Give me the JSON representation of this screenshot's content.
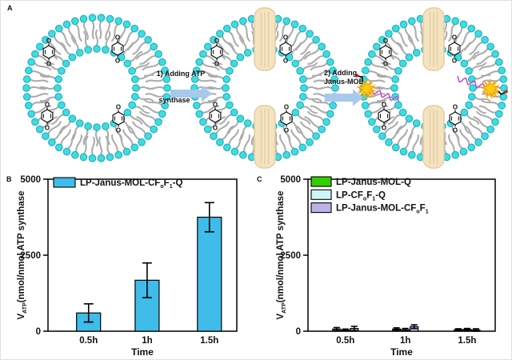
{
  "figure": {
    "panel_a_label": "A",
    "panel_b_label": "B",
    "panel_c_label": "C"
  },
  "scheme": {
    "step1_line1": "1) Adding ATP",
    "step1_line2": "synthase",
    "step2_line1": "2) Adding",
    "step2_line2": "Janus-MOL",
    "colors": {
      "lipid_head": "#3EDCE0",
      "lipid_head_stroke": "#18A9B8",
      "lipid_tail": "#ACACAC",
      "atp_synthase_fill": "#F4E3C0",
      "atp_synthase_stroke": "#E4CB9C",
      "janus_mol_gold": "#FFCD12",
      "janus_mol_orange": "#F09E06",
      "polymer_chain": "#C94FC9",
      "arrow_fill": "#A8C8EC",
      "quinone_stroke": "#111111",
      "anchor_tip_red": "#D42B1E"
    }
  },
  "chart_data": [
    {
      "type": "bar",
      "panel": "B",
      "categories": [
        "0.5h",
        "1h",
        "1.5h"
      ],
      "series": [
        {
          "name_parts": [
            {
              "t": "LP-Janus-MOL-CF"
            },
            {
              "t": "o",
              "sub": true
            },
            {
              "t": "F"
            },
            {
              "t": "1",
              "sub": true
            },
            {
              "t": "-Q"
            }
          ],
          "color": "#3FBCE9",
          "values": [
            600,
            1675,
            3750
          ],
          "errors": [
            300,
            570,
            480
          ]
        }
      ],
      "xlabel": "Time",
      "ylabel_parts": {
        "pre": "V",
        "sub": "ATP",
        "rest": "(nmol/nmol ATP synthase"
      },
      "ylim": [
        0,
        5000
      ],
      "yticks": [
        0,
        2500,
        5000
      ],
      "legend_position": "top-left",
      "grid": false
    },
    {
      "type": "bar",
      "panel": "C",
      "categories": [
        "0.5h",
        "1h",
        "1.5h"
      ],
      "series": [
        {
          "name_parts": [
            {
              "t": "LP-Janus-MOL-Q"
            }
          ],
          "color": "#33CC00",
          "values": [
            70,
            70,
            50
          ],
          "errors": [
            50,
            40,
            30
          ]
        },
        {
          "name_parts": [
            {
              "t": "LP-CF"
            },
            {
              "t": "o",
              "sub": true
            },
            {
              "t": "F"
            },
            {
              "t": "1",
              "sub": true
            },
            {
              "t": "-Q"
            }
          ],
          "color": "#CFF6F6",
          "values": [
            40,
            50,
            60
          ],
          "errors": [
            30,
            40,
            30
          ]
        },
        {
          "name_parts": [
            {
              "t": "LP-Janus-MOL-CF"
            },
            {
              "t": "o",
              "sub": true
            },
            {
              "t": "F"
            },
            {
              "t": "1",
              "sub": true
            }
          ],
          "color": "#B9B4E6",
          "values": [
            90,
            150,
            40
          ],
          "errors": [
            70,
            60,
            40
          ]
        }
      ],
      "xlabel": "Time",
      "ylabel_parts": {
        "pre": "V",
        "sub": "ATP",
        "rest": "(nmol/nmol ATP synthase"
      },
      "ylim": [
        0,
        5000
      ],
      "yticks": [
        0,
        2500,
        5000
      ],
      "legend_position": "top-left",
      "grid": false
    }
  ]
}
